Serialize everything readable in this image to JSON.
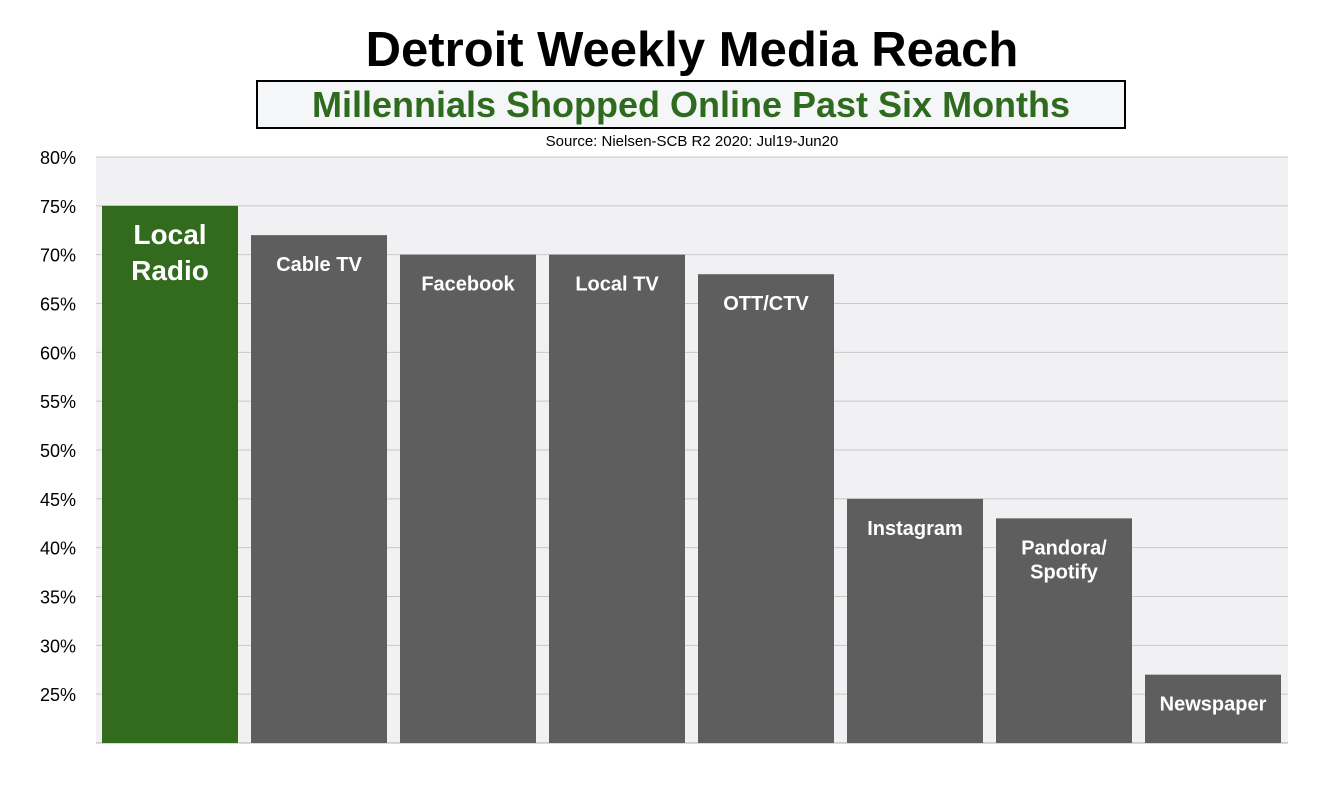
{
  "chart_data": {
    "type": "bar",
    "title": "Detroit Weekly Media Reach",
    "subtitle": "Millennials Shopped Online Past Six Months",
    "source": "Source: Nielsen-SCB R2 2020: Jul19-Jun20",
    "categories": [
      [
        "Local",
        "Radio"
      ],
      [
        "Cable TV"
      ],
      [
        "Facebook"
      ],
      [
        "Local TV"
      ],
      [
        "OTT/CTV"
      ],
      [
        "Instagram"
      ],
      [
        "Pandora/",
        "Spotify"
      ],
      [
        "Newspaper"
      ]
    ],
    "values": [
      75,
      72,
      70,
      70,
      68,
      45,
      43,
      27
    ],
    "ylim": [
      20,
      80
    ],
    "yticks": [
      25,
      30,
      35,
      40,
      45,
      50,
      55,
      60,
      65,
      70,
      75,
      80
    ],
    "ytick_labels": [
      "25%",
      "30%",
      "35%",
      "40%",
      "45%",
      "50%",
      "55%",
      "60%",
      "65%",
      "70%",
      "75%",
      "80%"
    ],
    "grid": true,
    "colors": {
      "highlight": "#336b1e",
      "bar": "#5e5e5e",
      "plot_background": "#f1f1f4",
      "gridline": "#c8c8c8"
    }
  }
}
